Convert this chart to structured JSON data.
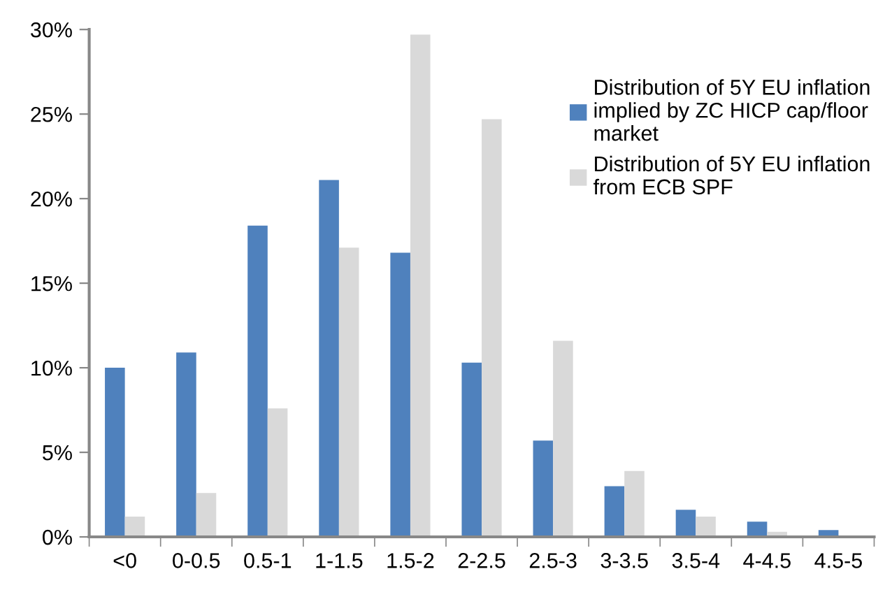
{
  "chart_data": {
    "type": "bar",
    "categories": [
      "<0",
      "0-0.5",
      "0.5-1",
      "1-1.5",
      "1.5-2",
      "2-2.5",
      "2.5-3",
      "3-3.5",
      "3.5-4",
      "4-4.5",
      "4.5-5"
    ],
    "series": [
      {
        "name": "Distribution of 5Y EU inflation implied by ZC HICP cap/floor market",
        "color": "#4f81bd",
        "values": [
          10.0,
          10.9,
          18.4,
          21.1,
          16.8,
          10.3,
          5.7,
          3.0,
          1.6,
          0.9,
          0.4
        ]
      },
      {
        "name": "Distribution of 5Y EU inflation from ECB SPF",
        "color": "#d9d9d9",
        "values": [
          1.2,
          2.6,
          7.6,
          17.1,
          29.7,
          24.7,
          11.6,
          3.9,
          1.2,
          0.3,
          0
        ]
      }
    ],
    "ylim": [
      0,
      30
    ],
    "yticks": [
      {
        "value": 0,
        "label": "0%"
      },
      {
        "value": 5,
        "label": "5%"
      },
      {
        "value": 10,
        "label": "10%"
      },
      {
        "value": 15,
        "label": "15%"
      },
      {
        "value": 20,
        "label": "20%"
      },
      {
        "value": 25,
        "label": "25%"
      },
      {
        "value": 30,
        "label": "30%"
      }
    ],
    "grid": false,
    "legend": "top right"
  }
}
